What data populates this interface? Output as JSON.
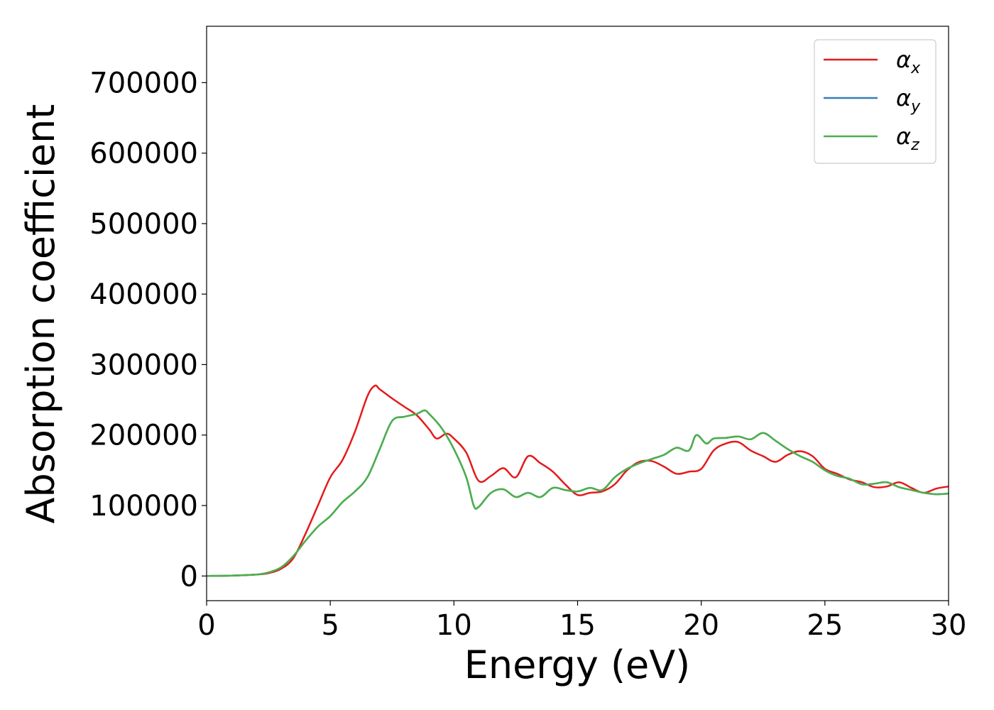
{
  "chart_data": {
    "type": "line",
    "title": "",
    "xlabel": "Energy (eV)",
    "ylabel": "Absorption coefficient",
    "xlim": [
      0,
      30
    ],
    "ylim": [
      -35000,
      780000
    ],
    "xticks": [
      "0",
      "5",
      "10",
      "15",
      "20",
      "25",
      "30"
    ],
    "yticks": [
      "0",
      "100000",
      "200000",
      "300000",
      "400000",
      "500000",
      "600000",
      "700000"
    ],
    "grid": false,
    "legend_position": "top-right",
    "series": [
      {
        "name": "α_x",
        "symbol": "α",
        "subscript": "x",
        "color": "#e41a1c",
        "x": [
          0,
          1,
          2,
          2.5,
          3,
          3.5,
          4,
          4.5,
          5,
          5.5,
          6,
          6.5,
          6.8,
          7,
          7.5,
          8,
          8.5,
          9,
          9.3,
          9.7,
          10,
          10.5,
          11,
          11.5,
          12,
          12.5,
          13,
          13.5,
          14,
          14.5,
          15,
          15.5,
          16,
          16.5,
          17,
          17.5,
          18,
          18.5,
          19,
          19.5,
          20,
          20.5,
          21,
          21.5,
          22,
          22.5,
          23,
          23.5,
          24,
          24.5,
          25,
          25.5,
          26,
          26.5,
          27,
          27.5,
          28,
          28.5,
          29,
          29.5,
          30
        ],
        "y": [
          0,
          500,
          2000,
          4000,
          10000,
          25000,
          60000,
          100000,
          140000,
          165000,
          205000,
          255000,
          270000,
          265000,
          252000,
          240000,
          228000,
          208000,
          195000,
          202000,
          195000,
          175000,
          135000,
          142000,
          153000,
          140000,
          170000,
          160000,
          148000,
          130000,
          115000,
          118000,
          120000,
          130000,
          150000,
          162000,
          163000,
          155000,
          145000,
          148000,
          152000,
          178000,
          188000,
          190000,
          178000,
          170000,
          162000,
          172000,
          177000,
          170000,
          152000,
          145000,
          137000,
          133000,
          126000,
          127000,
          133000,
          125000,
          118000,
          124000,
          127000
        ]
      },
      {
        "name": "α_y",
        "symbol": "α",
        "subscript": "y",
        "color": "#377eb8",
        "x": [
          0,
          1,
          2,
          2.5,
          3,
          3.5,
          4,
          4.5,
          5,
          5.5,
          6,
          6.5,
          7,
          7.5,
          8,
          8.5,
          8.8,
          9,
          9.5,
          10,
          10.5,
          10.8,
          11,
          11.5,
          12,
          12.5,
          13,
          13.5,
          14,
          14.5,
          15,
          15.5,
          16,
          16.5,
          17,
          17.5,
          18,
          18.5,
          19,
          19.5,
          19.8,
          20.2,
          20.5,
          21,
          21.5,
          22,
          22.5,
          23,
          23.5,
          24,
          24.5,
          25,
          25.5,
          26,
          26.5,
          27,
          27.5,
          28,
          28.5,
          29,
          29.5,
          30
        ],
        "y": [
          0,
          500,
          2000,
          5000,
          12000,
          28000,
          50000,
          70000,
          85000,
          105000,
          120000,
          140000,
          180000,
          220000,
          226000,
          230000,
          235000,
          230000,
          210000,
          180000,
          140000,
          100000,
          98000,
          118000,
          123000,
          112000,
          118000,
          112000,
          125000,
          122000,
          120000,
          125000,
          122000,
          140000,
          152000,
          160000,
          166000,
          172000,
          182000,
          178000,
          200000,
          188000,
          195000,
          196000,
          198000,
          194000,
          203000,
          192000,
          180000,
          170000,
          162000,
          150000,
          142000,
          138000,
          130000,
          131000,
          133000,
          126000,
          122000,
          118000,
          116000,
          117000
        ]
      },
      {
        "name": "α_z",
        "symbol": "α",
        "subscript": "z",
        "color": "#4daf4a",
        "x": [
          0,
          1,
          2,
          2.5,
          3,
          3.5,
          4,
          4.5,
          5,
          5.5,
          6,
          6.5,
          7,
          7.5,
          8,
          8.5,
          8.8,
          9,
          9.5,
          10,
          10.5,
          10.8,
          11,
          11.5,
          12,
          12.5,
          13,
          13.5,
          14,
          14.5,
          15,
          15.5,
          16,
          16.5,
          17,
          17.5,
          18,
          18.5,
          19,
          19.5,
          19.8,
          20.2,
          20.5,
          21,
          21.5,
          22,
          22.5,
          23,
          23.5,
          24,
          24.5,
          25,
          25.5,
          26,
          26.5,
          27,
          27.5,
          28,
          28.5,
          29,
          29.5,
          30
        ],
        "y": [
          0,
          500,
          2000,
          5000,
          12000,
          28000,
          50000,
          70000,
          85000,
          105000,
          120000,
          140000,
          180000,
          220000,
          226000,
          230000,
          235000,
          230000,
          210000,
          180000,
          140000,
          100000,
          98000,
          118000,
          123000,
          112000,
          118000,
          112000,
          125000,
          122000,
          120000,
          125000,
          122000,
          140000,
          152000,
          160000,
          166000,
          172000,
          182000,
          178000,
          200000,
          188000,
          195000,
          196000,
          198000,
          194000,
          203000,
          192000,
          180000,
          170000,
          162000,
          150000,
          142000,
          138000,
          130000,
          131000,
          133000,
          126000,
          122000,
          118000,
          116000,
          117000
        ]
      }
    ]
  }
}
